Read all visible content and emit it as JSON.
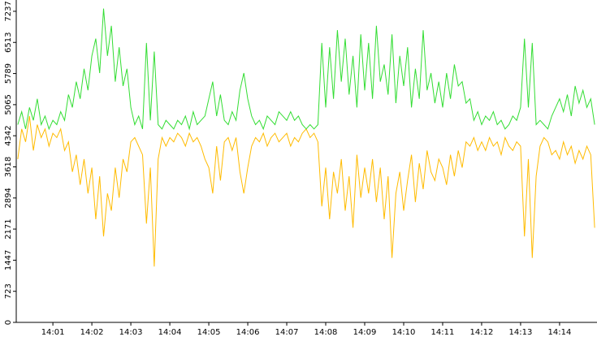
{
  "chart_data": {
    "type": "line",
    "x": [
      0.1,
      0.2,
      0.3,
      0.4,
      0.5,
      0.6,
      0.7,
      0.8,
      0.9,
      1.0,
      1.1,
      1.2,
      1.3,
      1.4,
      1.5,
      1.6,
      1.7,
      1.8,
      1.9,
      2.0,
      2.1,
      2.2,
      2.3,
      2.4,
      2.5,
      2.6,
      2.7,
      2.8,
      2.9,
      3.0,
      3.1,
      3.2,
      3.3,
      3.4,
      3.5,
      3.6,
      3.7,
      3.8,
      3.9,
      4.0,
      4.1,
      4.2,
      4.3,
      4.4,
      4.5,
      4.6,
      4.7,
      4.8,
      4.9,
      5.0,
      5.1,
      5.2,
      5.3,
      5.4,
      5.5,
      5.6,
      5.7,
      5.8,
      5.9,
      6.0,
      6.1,
      6.2,
      6.3,
      6.4,
      6.5,
      6.6,
      6.7,
      6.8,
      6.9,
      7.0,
      7.1,
      7.2,
      7.3,
      7.4,
      7.5,
      7.6,
      7.7,
      7.8,
      7.9,
      8.0,
      8.1,
      8.2,
      8.3,
      8.4,
      8.5,
      8.6,
      8.7,
      8.8,
      8.9,
      9.0,
      9.1,
      9.2,
      9.3,
      9.4,
      9.5,
      9.6,
      9.7,
      9.8,
      9.9,
      10.0,
      10.1,
      10.2,
      10.3,
      10.4,
      10.5,
      10.6,
      10.7,
      10.8,
      10.9,
      11.0,
      11.1,
      11.2,
      11.3,
      11.4,
      11.5,
      11.6,
      11.7,
      11.8,
      11.9,
      12.0,
      12.1,
      12.2,
      12.3,
      12.4,
      12.5,
      12.6,
      12.7,
      12.8,
      12.9,
      13.0,
      13.1,
      13.2,
      13.3,
      13.4,
      13.5,
      13.6,
      13.7,
      13.8,
      13.9,
      14.0,
      14.1,
      14.2,
      14.3,
      14.4,
      14.5,
      14.6,
      14.7,
      14.8,
      14.9
    ],
    "series": [
      {
        "color": "#33dd33",
        "values": [
          4600,
          4900,
          4500,
          5000,
          4700,
          5200,
          4600,
          4800,
          4500,
          4700,
          4600,
          4900,
          4700,
          5300,
          5000,
          5600,
          5200,
          5900,
          5400,
          6200,
          6600,
          5800,
          7300,
          6200,
          6900,
          5600,
          6400,
          5500,
          5900,
          5000,
          4600,
          4800,
          4500,
          6500,
          4700,
          6300,
          4600,
          4500,
          4700,
          4600,
          4500,
          4700,
          4600,
          4800,
          4500,
          4900,
          4600,
          4700,
          4800,
          5200,
          5600,
          4800,
          5300,
          4700,
          4600,
          4900,
          4700,
          5400,
          5800,
          5200,
          4800,
          4600,
          4700,
          4500,
          4800,
          4700,
          4600,
          4900,
          4800,
          4700,
          4900,
          4700,
          4800,
          4600,
          4500,
          4600,
          4500,
          4600,
          6500,
          5000,
          6400,
          5200,
          6800,
          5600,
          6600,
          5300,
          6200,
          5000,
          6700,
          5400,
          6500,
          5200,
          6900,
          5600,
          6000,
          5300,
          6700,
          5100,
          6200,
          5500,
          6400,
          5000,
          5900,
          5200,
          6800,
          5400,
          5800,
          5100,
          5600,
          5000,
          5800,
          5200,
          6000,
          5500,
          5600,
          5100,
          5200,
          4700,
          4900,
          4600,
          4800,
          4700,
          4900,
          4600,
          4700,
          4500,
          4600,
          4800,
          4700,
          5000,
          6600,
          5000,
          6500,
          4600,
          4700,
          4600,
          4500,
          4800,
          5000,
          5200,
          4900,
          5300,
          4800,
          5500,
          5100,
          5400,
          5000,
          5200,
          4600
        ]
      },
      {
        "color": "#ffbb00",
        "values": [
          3800,
          4500,
          4200,
          4800,
          4000,
          4600,
          4300,
          4500,
          4100,
          4400,
          4300,
          4500,
          4000,
          4200,
          3500,
          3900,
          3200,
          3800,
          3000,
          3600,
          2400,
          3400,
          2000,
          3000,
          2600,
          3600,
          2900,
          3800,
          3500,
          4200,
          4300,
          4100,
          3900,
          2300,
          3600,
          1300,
          3800,
          4300,
          4100,
          4300,
          4200,
          4400,
          4300,
          4100,
          4400,
          4200,
          4300,
          4100,
          3800,
          3600,
          3000,
          4100,
          3300,
          4200,
          4300,
          4000,
          4300,
          3500,
          3000,
          3600,
          4100,
          4300,
          4200,
          4400,
          4100,
          4300,
          4400,
          4200,
          4300,
          4400,
          4100,
          4300,
          4200,
          4400,
          4500,
          4300,
          4400,
          4200,
          2700,
          3600,
          2400,
          3500,
          3000,
          3800,
          2600,
          3400,
          2200,
          3900,
          2900,
          3600,
          3000,
          3800,
          2800,
          3600,
          2400,
          3400,
          1500,
          3000,
          3500,
          2600,
          3300,
          3900,
          2800,
          3700,
          3100,
          4000,
          3500,
          3300,
          3800,
          3600,
          3200,
          3900,
          3400,
          4000,
          3600,
          4200,
          4100,
          4300,
          4000,
          4200,
          4000,
          4300,
          4100,
          4200,
          3900,
          4300,
          4100,
          4000,
          4200,
          4100,
          2000,
          3800,
          1500,
          3400,
          4100,
          4300,
          4200,
          3900,
          4000,
          3800,
          4200,
          3900,
          4100,
          3700,
          4000,
          3800,
          4100,
          3900,
          2200
        ]
      }
    ],
    "xlim": [
      0.06,
      14.96
    ],
    "ylim": [
      0,
      7500
    ],
    "xticks": [
      {
        "value": 1,
        "label": "14:01"
      },
      {
        "value": 2,
        "label": "14:02"
      },
      {
        "value": 3,
        "label": "14:03"
      },
      {
        "value": 4,
        "label": "14:04"
      },
      {
        "value": 5,
        "label": "14:05"
      },
      {
        "value": 6,
        "label": "14:06"
      },
      {
        "value": 7,
        "label": "14:07"
      },
      {
        "value": 8,
        "label": "14:08"
      },
      {
        "value": 9,
        "label": "14:09"
      },
      {
        "value": 10,
        "label": "14:10"
      },
      {
        "value": 11,
        "label": "14:11"
      },
      {
        "value": 12,
        "label": "14:12"
      },
      {
        "value": 13,
        "label": "14:13"
      },
      {
        "value": 14,
        "label": "14:14"
      }
    ],
    "yticks": [
      0,
      723,
      1447,
      2171,
      2894,
      3618,
      4342,
      5065,
      5789,
      6513,
      7237
    ]
  }
}
